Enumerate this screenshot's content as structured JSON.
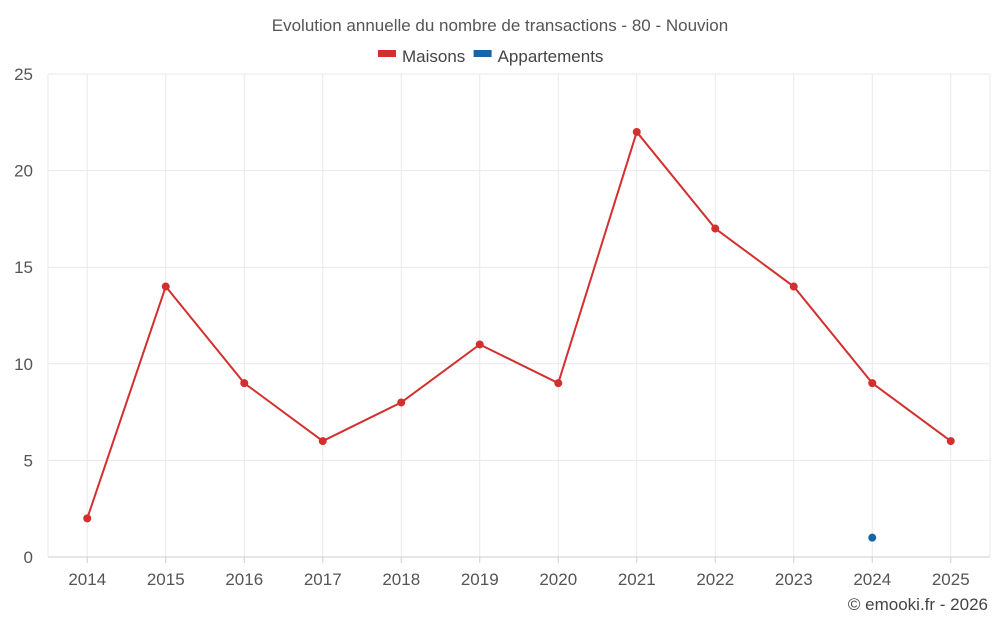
{
  "chart_data": {
    "type": "line",
    "title": "Evolution annuelle du nombre de transactions - 80 - Nouvion",
    "categories": [
      "2014",
      "2015",
      "2016",
      "2017",
      "2018",
      "2019",
      "2020",
      "2021",
      "2022",
      "2023",
      "2024",
      "2025"
    ],
    "ylim": [
      0,
      25
    ],
    "yticks": [
      0,
      5,
      10,
      15,
      20,
      25
    ],
    "grid": true,
    "legend_position": "top-center",
    "series": [
      {
        "name": "Maisons",
        "color": "#d32f2f",
        "values": [
          2,
          14,
          9,
          6,
          8,
          11,
          9,
          22,
          17,
          14,
          9,
          6
        ]
      },
      {
        "name": "Appartements",
        "color": "#1565a8",
        "values": [
          null,
          null,
          null,
          null,
          null,
          null,
          null,
          null,
          null,
          null,
          1,
          null
        ]
      }
    ]
  },
  "credit": "© emooki.fr - 2026"
}
